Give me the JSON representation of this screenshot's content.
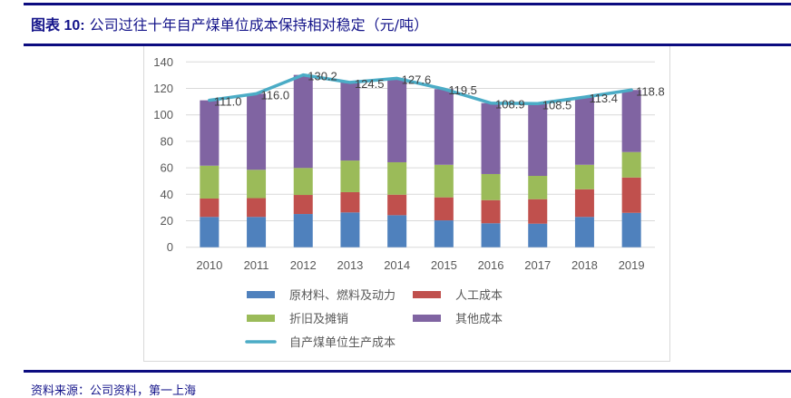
{
  "header": {
    "title_prefix": "图表 10:",
    "title_text": "公司过往十年自产煤单位成本保持相对稳定（元/吨）"
  },
  "footer": {
    "source": "资料来源：公司资料，第一上海"
  },
  "colors": {
    "rule": "#0c0c80",
    "raw_materials": "#4f81bd",
    "labor": "#c0504d",
    "depreciation": "#9bbb59",
    "other": "#8064a2",
    "unit_cost_line": "#4bacc6"
  },
  "chart_data": {
    "type": "bar",
    "stacked": true,
    "title": "公司过往十年自产煤单位成本保持相对稳定（元/吨）",
    "xlabel": "",
    "ylabel": "",
    "ylim": [
      0,
      140
    ],
    "yticks": [
      0,
      20,
      40,
      60,
      80,
      100,
      120,
      140
    ],
    "grid": true,
    "legend_position": "bottom",
    "categories": [
      "2010",
      "2011",
      "2012",
      "2013",
      "2014",
      "2015",
      "2016",
      "2017",
      "2018",
      "2019"
    ],
    "series": [
      {
        "name": "原材料、燃料及动力",
        "type": "bar",
        "color_key": "raw_materials",
        "values": [
          22.9,
          22.9,
          25.1,
          26.3,
          24.2,
          20.3,
          18.1,
          17.8,
          22.9,
          26.0
        ]
      },
      {
        "name": "人工成本",
        "type": "bar",
        "color_key": "labor",
        "values": [
          13.9,
          14.2,
          14.4,
          15.3,
          15.5,
          17.4,
          17.5,
          18.5,
          20.9,
          26.7
        ]
      },
      {
        "name": "折旧及摊销",
        "type": "bar",
        "color_key": "depreciation",
        "values": [
          24.8,
          21.4,
          20.4,
          23.9,
          24.5,
          24.6,
          19.7,
          17.6,
          18.5,
          19.2
        ]
      },
      {
        "name": "其他成本",
        "type": "bar",
        "color_key": "other",
        "values": [
          49.4,
          57.5,
          70.3,
          59.0,
          63.4,
          57.2,
          53.6,
          54.6,
          51.1,
          46.9
        ]
      },
      {
        "name": "自产煤单位生产成本",
        "type": "line",
        "color_key": "unit_cost_line",
        "values": [
          111.0,
          116.0,
          130.2,
          124.5,
          127.6,
          119.5,
          108.9,
          108.5,
          113.4,
          118.8
        ],
        "labels": [
          "111.0",
          "116.0",
          "130.2",
          "124.5",
          "127.6",
          "119.5",
          "108.9",
          "108.5",
          "113.4",
          "118.8"
        ]
      }
    ]
  }
}
